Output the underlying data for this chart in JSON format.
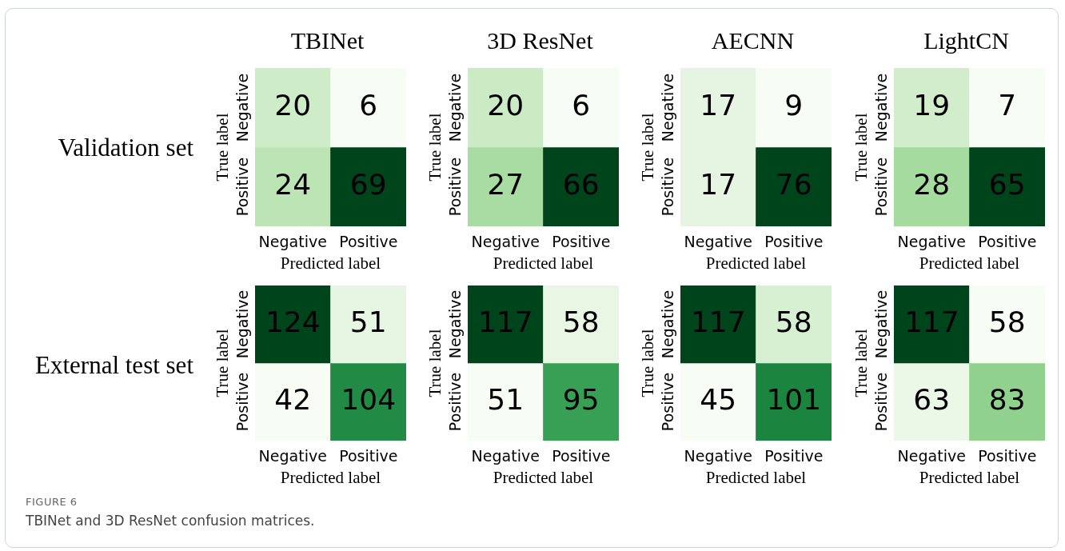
{
  "chart_data": [
    {
      "type": "heatmap",
      "title": "TBINet",
      "xlabel": "Predicted label",
      "ylabel": "True label",
      "categories": [
        "Negative",
        "Positive"
      ],
      "y_categories": [
        "Negative",
        "Positive"
      ],
      "cells": [
        [
          20,
          6
        ],
        [
          24,
          69
        ]
      ],
      "data_labels": true,
      "annotations": [
        "Validation set"
      ]
    },
    {
      "type": "heatmap",
      "title": "3D ResNet",
      "xlabel": "Predicted label",
      "ylabel": "True label",
      "categories": [
        "Negative",
        "Positive"
      ],
      "y_categories": [
        "Negative",
        "Positive"
      ],
      "cells": [
        [
          20,
          6
        ],
        [
          27,
          66
        ]
      ],
      "data_labels": true
    },
    {
      "type": "heatmap",
      "title": "AECNN",
      "xlabel": "Predicted label",
      "ylabel": "True label",
      "categories": [
        "Negative",
        "Positive"
      ],
      "y_categories": [
        "Negative",
        "Positive"
      ],
      "cells": [
        [
          17,
          9
        ],
        [
          17,
          76
        ]
      ],
      "data_labels": true
    },
    {
      "type": "heatmap",
      "title": "LightCN",
      "xlabel": "Predicted label",
      "ylabel": "True label",
      "categories": [
        "Negative",
        "Positive"
      ],
      "y_categories": [
        "Negative",
        "Positive"
      ],
      "cells": [
        [
          19,
          7
        ],
        [
          28,
          65
        ]
      ],
      "data_labels": true
    },
    {
      "type": "heatmap",
      "xlabel": "Predicted label",
      "ylabel": "True label",
      "categories": [
        "Negative",
        "Positive"
      ],
      "y_categories": [
        "Negative",
        "Positive"
      ],
      "cells": [
        [
          124,
          51
        ],
        [
          42,
          104
        ]
      ],
      "data_labels": true,
      "annotations": [
        "External test set"
      ]
    },
    {
      "type": "heatmap",
      "xlabel": "Predicted label",
      "ylabel": "True label",
      "categories": [
        "Negative",
        "Positive"
      ],
      "y_categories": [
        "Negative",
        "Positive"
      ],
      "cells": [
        [
          117,
          58
        ],
        [
          51,
          95
        ]
      ],
      "data_labels": true
    },
    {
      "type": "heatmap",
      "xlabel": "Predicted label",
      "ylabel": "True label",
      "categories": [
        "Negative",
        "Positive"
      ],
      "y_categories": [
        "Negative",
        "Positive"
      ],
      "cells": [
        [
          117,
          58
        ],
        [
          45,
          101
        ]
      ],
      "data_labels": true
    },
    {
      "type": "heatmap",
      "xlabel": "Predicted label",
      "ylabel": "True label",
      "categories": [
        "Negative",
        "Positive"
      ],
      "y_categories": [
        "Negative",
        "Positive"
      ],
      "cells": [
        [
          117,
          58
        ],
        [
          63,
          83
        ]
      ],
      "data_labels": true
    },
    {
      "type": "other",
      "title": "FIGURE 6",
      "subtitle": "TBINet and 3D ResNet confusion matrices."
    }
  ]
}
